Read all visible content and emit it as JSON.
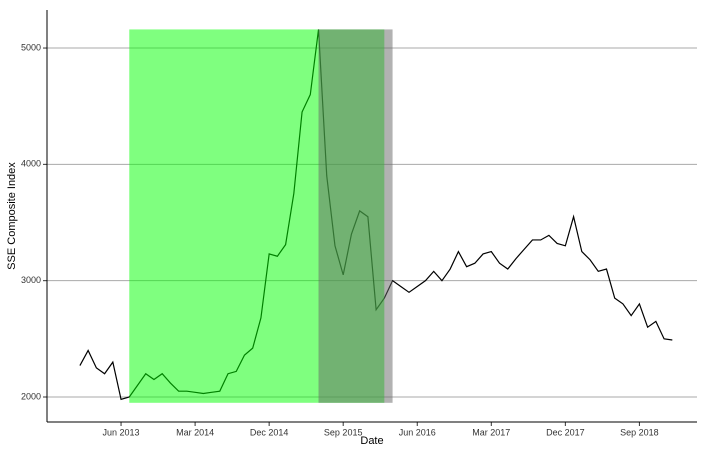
{
  "chart_data": {
    "type": "line",
    "x_label": "Date",
    "y_label": "SSE Composite Index",
    "x": [
      "2013-01",
      "2013-02",
      "2013-03",
      "2013-04",
      "2013-05",
      "2013-06",
      "2013-07",
      "2013-08",
      "2013-09",
      "2013-10",
      "2013-11",
      "2013-12",
      "2014-01",
      "2014-02",
      "2014-03",
      "2014-04",
      "2014-05",
      "2014-06",
      "2014-07",
      "2014-08",
      "2014-09",
      "2014-10",
      "2014-11",
      "2014-12",
      "2015-01",
      "2015-02",
      "2015-03",
      "2015-04",
      "2015-05",
      "2015-06",
      "2015-07",
      "2015-08",
      "2015-09",
      "2015-10",
      "2015-11",
      "2015-12",
      "2016-01",
      "2016-02",
      "2016-03",
      "2016-04",
      "2016-05",
      "2016-06",
      "2016-07",
      "2016-08",
      "2016-09",
      "2016-10",
      "2016-11",
      "2016-12",
      "2017-01",
      "2017-02",
      "2017-03",
      "2017-04",
      "2017-05",
      "2017-06",
      "2017-07",
      "2017-08",
      "2017-09",
      "2017-10",
      "2017-11",
      "2017-12",
      "2018-01",
      "2018-02",
      "2018-03",
      "2018-04",
      "2018-05",
      "2018-06",
      "2018-07",
      "2018-08",
      "2018-09",
      "2018-10",
      "2018-11",
      "2018-12",
      "2019-01"
    ],
    "series": [
      {
        "color": "#000000",
        "values": [
          2270,
          2400,
          2250,
          2200,
          2300,
          1980,
          2000,
          2100,
          2200,
          2150,
          2200,
          2120,
          2050,
          2050,
          2040,
          2030,
          2040,
          2050,
          2200,
          2220,
          2360,
          2420,
          2680,
          3230,
          3210,
          3310,
          3750,
          4450,
          4600,
          5160,
          3900,
          3300,
          3050,
          3400,
          3600,
          3550,
          2750,
          2850,
          3000,
          2950,
          2900,
          2950,
          3000,
          3080,
          3000,
          3100,
          3250,
          3120,
          3150,
          3230,
          3250,
          3150,
          3100,
          3190,
          3270,
          3350,
          3350,
          3390,
          3320,
          3300,
          3550,
          3250,
          3180,
          3080,
          3100,
          2850,
          2800,
          2700,
          2800,
          2600,
          2650,
          2500,
          2490
        ]
      }
    ],
    "regions": [
      {
        "start": "2013-07",
        "end": "2016-02",
        "color": "#00ff00",
        "opacity": 0.5,
        "ymin": 1950,
        "ymax": 5160
      },
      {
        "start": "2015-06",
        "end": "2016-03",
        "color": "#666666",
        "opacity": 0.5,
        "ymin": 1950,
        "ymax": 5160
      }
    ],
    "xlim": [
      "2012-09",
      "2019-04"
    ],
    "ylim": [
      1785,
      5327
    ],
    "xticks": [
      {
        "value": "2013-06",
        "label": "Jun 2013"
      },
      {
        "value": "2014-03",
        "label": "Mar 2014"
      },
      {
        "value": "2014-12",
        "label": "Dec 2014"
      },
      {
        "value": "2015-09",
        "label": "Sep 2015"
      },
      {
        "value": "2016-06",
        "label": "Jun 2016"
      },
      {
        "value": "2017-03",
        "label": "Mar 2017"
      },
      {
        "value": "2017-12",
        "label": "Dec 2017"
      },
      {
        "value": "2018-09",
        "label": "Sep 2018"
      }
    ],
    "yticks": [
      2000,
      3000,
      4000,
      5000
    ],
    "grid": true
  }
}
